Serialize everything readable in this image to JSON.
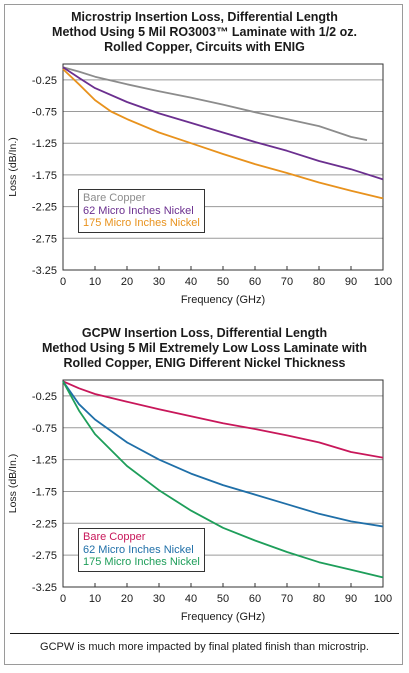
{
  "chart_data": [
    {
      "type": "line",
      "title": [
        "Microstrip Insertion Loss, Differential Length",
        "Method Using 5 Mil RO3003™ Laminate with 1/2 oz.",
        "Rolled Copper, Circuits with ENIG"
      ],
      "xlabel": "Frequency (GHz)",
      "ylabel": "Loss (dB/In.)",
      "xlim": [
        0,
        100
      ],
      "ylim": [
        -3.25,
        0
      ],
      "xticks": [
        "0",
        "10",
        "20",
        "30",
        "40",
        "50",
        "60",
        "70",
        "80",
        "90",
        "100"
      ],
      "yticks": [
        "-0.25",
        "-0.75",
        "-1.25",
        "-1.75",
        "-2.25",
        "-2.75",
        "-3.25"
      ],
      "grid": true,
      "legend_position": "bottom-left",
      "series": [
        {
          "name": "Bare Copper",
          "color": "#8c8c8c",
          "x": [
            0,
            5,
            10,
            20,
            30,
            40,
            50,
            60,
            70,
            80,
            90,
            95
          ],
          "y": [
            -0.05,
            -0.12,
            -0.2,
            -0.32,
            -0.43,
            -0.53,
            -0.64,
            -0.76,
            -0.87,
            -0.98,
            -1.15,
            -1.2
          ]
        },
        {
          "name": "62 Micro Inches Nickel",
          "color": "#6b2f8f",
          "x": [
            0,
            5,
            10,
            20,
            30,
            40,
            50,
            60,
            70,
            80,
            90,
            100
          ],
          "y": [
            -0.05,
            -0.22,
            -0.38,
            -0.6,
            -0.78,
            -0.93,
            -1.08,
            -1.23,
            -1.37,
            -1.53,
            -1.66,
            -1.82
          ]
        },
        {
          "name": "175 Micro Inches Nickel",
          "color": "#e8921d",
          "x": [
            0,
            5,
            10,
            15,
            20,
            30,
            40,
            50,
            60,
            70,
            80,
            90,
            100
          ],
          "y": [
            -0.08,
            -0.32,
            -0.57,
            -0.75,
            -0.87,
            -1.08,
            -1.25,
            -1.42,
            -1.58,
            -1.72,
            -1.87,
            -2.0,
            -2.12
          ]
        }
      ]
    },
    {
      "type": "line",
      "title": [
        "GCPW Insertion Loss, Differential Length",
        "Method Using 5 Mil Extremely Low Loss Laminate with",
        "Rolled Copper, ENIG Different Nickel Thickness"
      ],
      "xlabel": "Frequency (GHz)",
      "ylabel": "Loss (dB/In.)",
      "xlim": [
        0,
        100
      ],
      "ylim": [
        -3.25,
        0
      ],
      "xticks": [
        "0",
        "10",
        "20",
        "30",
        "40",
        "50",
        "60",
        "70",
        "80",
        "90",
        "100"
      ],
      "yticks": [
        "-0.25",
        "-0.75",
        "-1.25",
        "-1.75",
        "-2.25",
        "-2.75",
        "-3.25"
      ],
      "grid": true,
      "legend_position": "bottom-left",
      "series": [
        {
          "name": "Bare Copper",
          "color": "#c8175a",
          "x": [
            0,
            5,
            10,
            20,
            30,
            40,
            50,
            60,
            70,
            80,
            90,
            100
          ],
          "y": [
            -0.02,
            -0.13,
            -0.22,
            -0.34,
            -0.46,
            -0.57,
            -0.68,
            -0.77,
            -0.87,
            -0.98,
            -1.13,
            -1.22
          ]
        },
        {
          "name": "62 Micro Inches Nickel",
          "color": "#1f6fa8",
          "x": [
            0,
            5,
            10,
            20,
            30,
            40,
            50,
            60,
            70,
            80,
            90,
            100
          ],
          "y": [
            -0.02,
            -0.38,
            -0.62,
            -0.98,
            -1.25,
            -1.47,
            -1.65,
            -1.8,
            -1.95,
            -2.1,
            -2.22,
            -2.3
          ]
        },
        {
          "name": "175 Micro Inches Nickel",
          "color": "#1e9e5a",
          "x": [
            0,
            5,
            10,
            20,
            30,
            40,
            50,
            60,
            70,
            80,
            90,
            100
          ],
          "y": [
            -0.02,
            -0.48,
            -0.85,
            -1.35,
            -1.73,
            -2.05,
            -2.32,
            -2.52,
            -2.7,
            -2.86,
            -2.98,
            -3.1
          ]
        }
      ]
    }
  ],
  "caption": "GCPW is much more impacted by final plated finish than microstrip."
}
